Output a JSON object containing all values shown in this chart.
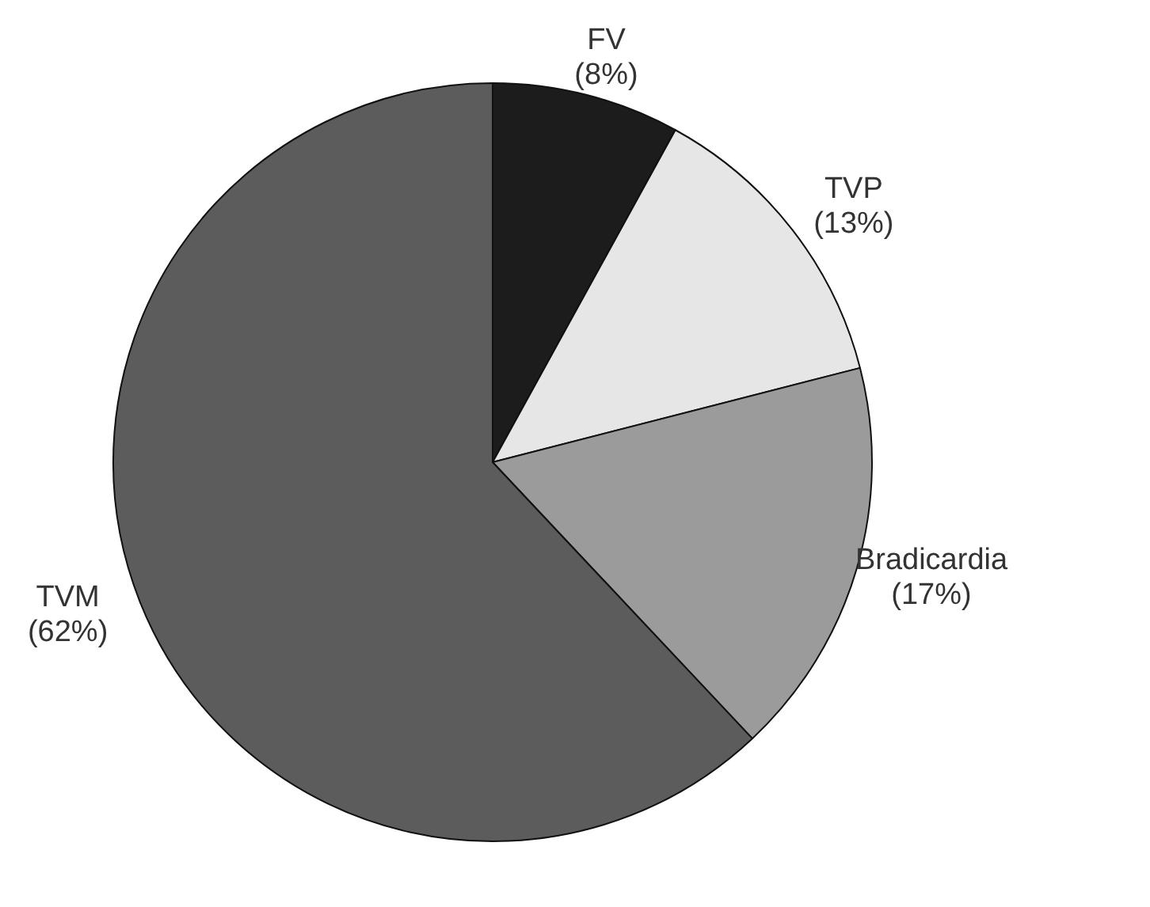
{
  "chart_data": {
    "type": "pie",
    "categories": [
      "FV",
      "TVP",
      "Bradicardia",
      "TVM"
    ],
    "values": [
      8,
      13,
      17,
      62
    ],
    "colors": [
      "#1c1c1c",
      "#e6e6e6",
      "#9b9b9b",
      "#5c5c5c"
    ],
    "value_labels": [
      "(8%)",
      "(13%)",
      "(17%)",
      "(62%)"
    ],
    "legend": false
  }
}
